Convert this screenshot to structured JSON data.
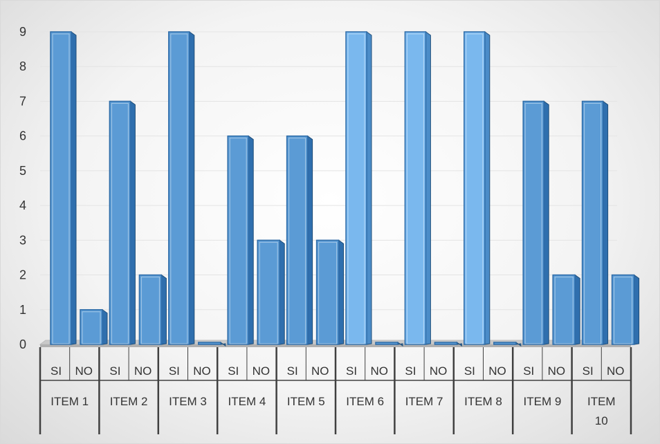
{
  "chart_data": {
    "type": "bar",
    "title": "",
    "xlabel": "",
    "ylabel": "",
    "ylim": [
      0,
      9
    ],
    "yticks": [
      0,
      1,
      2,
      3,
      4,
      5,
      6,
      7,
      8,
      9
    ],
    "grid": true,
    "legend": "none",
    "style": "3d-columns",
    "bar_color": "#5b9bd5",
    "bar_color_light": "#7ab8ee",
    "groups": [
      {
        "name": "ITEM 1",
        "lines": [
          "ITEM 1"
        ],
        "bars": [
          {
            "label": "SI",
            "value": 9
          },
          {
            "label": "NO",
            "value": 1
          }
        ]
      },
      {
        "name": "ITEM 2",
        "lines": [
          "ITEM 2"
        ],
        "bars": [
          {
            "label": "SI",
            "value": 7
          },
          {
            "label": "NO",
            "value": 2
          }
        ]
      },
      {
        "name": "ITEM 3",
        "lines": [
          "ITEM 3"
        ],
        "bars": [
          {
            "label": "SI",
            "value": 9
          },
          {
            "label": "NO",
            "value": 0
          }
        ]
      },
      {
        "name": "ITEM 4",
        "lines": [
          "ITEM 4"
        ],
        "bars": [
          {
            "label": "SI",
            "value": 6
          },
          {
            "label": "NO",
            "value": 3
          }
        ]
      },
      {
        "name": "ITEM 5",
        "lines": [
          "ITEM 5"
        ],
        "bars": [
          {
            "label": "SI",
            "value": 6
          },
          {
            "label": "NO",
            "value": 3
          }
        ]
      },
      {
        "name": "ITEM 6",
        "lines": [
          "ITEM 6"
        ],
        "bars": [
          {
            "label": "SI",
            "value": 9
          },
          {
            "label": "NO",
            "value": 0
          }
        ]
      },
      {
        "name": "ITEM 7",
        "lines": [
          "ITEM 7"
        ],
        "bars": [
          {
            "label": "SI",
            "value": 9
          },
          {
            "label": "NO",
            "value": 0
          }
        ]
      },
      {
        "name": "ITEM 8",
        "lines": [
          "ITEM 8"
        ],
        "bars": [
          {
            "label": "SI",
            "value": 9
          },
          {
            "label": "NO",
            "value": 0
          }
        ]
      },
      {
        "name": "ITEM 9",
        "lines": [
          "ITEM 9"
        ],
        "bars": [
          {
            "label": "SI",
            "value": 7
          },
          {
            "label": "NO",
            "value": 2
          }
        ]
      },
      {
        "name": "ITEM 10",
        "lines": [
          "ITEM",
          "10"
        ],
        "bars": [
          {
            "label": "SI",
            "value": 7
          },
          {
            "label": "NO",
            "value": 2
          }
        ]
      }
    ]
  }
}
